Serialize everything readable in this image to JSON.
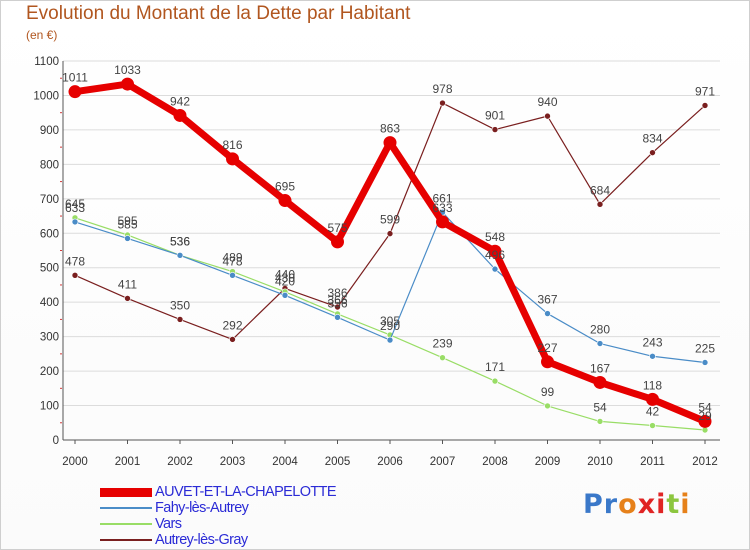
{
  "title": "Evolution du Montant de la Dette par Habitant",
  "unit": "(en €)",
  "logo": {
    "text": "Proxiti",
    "letter_colors": [
      "#3a78c9",
      "#3a78c9",
      "#e6811a",
      "#e02424",
      "#e02424",
      "#8cc63f",
      "#e6811a"
    ]
  },
  "chart_data": {
    "type": "line",
    "title": "Evolution du Montant de la Dette par Habitant",
    "ylabel": "(en €)",
    "xlabel": "",
    "ylim": [
      0,
      1100
    ],
    "yticks": [
      0,
      100,
      200,
      300,
      400,
      500,
      600,
      700,
      800,
      900,
      1000,
      1100
    ],
    "x": [
      "2000",
      "2001",
      "2002",
      "2003",
      "2004",
      "2005",
      "2006",
      "2007",
      "2008",
      "2009",
      "2010",
      "2011",
      "2012"
    ],
    "grid": "horizontal",
    "legend": "bottom-left",
    "series": [
      {
        "name": "AUVET-ET-LA-CHAPELOTTE",
        "color": "#e60000",
        "values": [
          1011,
          1033,
          942,
          816,
          695,
          575,
          863,
          633,
          548,
          227,
          167,
          118,
          54
        ]
      },
      {
        "name": "Fahy-lès-Autrey",
        "color": "#4a8cc7",
        "values": [
          633,
          585,
          536,
          478,
          420,
          356,
          290,
          661,
          496,
          367,
          280,
          243,
          225
        ]
      },
      {
        "name": "Vars",
        "color": "#99dd66",
        "values": [
          645,
          595,
          536,
          489,
          430,
          366,
          305,
          239,
          171,
          99,
          54,
          42,
          29
        ]
      },
      {
        "name": "Autrey-lès-Gray",
        "color": "#7a1f1f",
        "values": [
          478,
          411,
          350,
          292,
          440,
          386,
          599,
          978,
          901,
          940,
          684,
          834,
          971
        ]
      }
    ]
  }
}
